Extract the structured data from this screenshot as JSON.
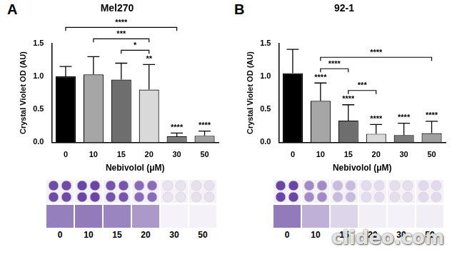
{
  "chart_data": [
    {
      "type": "bar",
      "panel": "A",
      "title": "Mel270",
      "x_label": "Nebivolol (μM)",
      "y_label": "Crystal Violet OD (AU)",
      "categories": [
        "0",
        "10",
        "15",
        "20",
        "30",
        "50"
      ],
      "values": [
        1.0,
        1.03,
        0.95,
        0.8,
        0.09,
        0.1
      ],
      "errors": [
        0.15,
        0.27,
        0.25,
        0.38,
        0.05,
        0.07
      ],
      "colors": [
        "#000000",
        "#a6a6a6",
        "#6e6e6e",
        "#d9d9d9",
        "#7a7a7a",
        "#a0a0a0"
      ],
      "ylim": [
        0,
        1.5
      ],
      "yticks": [
        {
          "value": 0,
          "label": "0.0"
        },
        {
          "value": 0.5,
          "label": "0.5"
        },
        {
          "value": 1,
          "label": "1.0"
        },
        {
          "value": 1.5,
          "label": "1.5"
        }
      ],
      "grid": false,
      "significance": {
        "bars": [
          null,
          null,
          null,
          "**",
          "****",
          "****"
        ],
        "brackets": [
          {
            "from": "0",
            "to": "30",
            "label": "****"
          },
          {
            "from": "10",
            "to": "20",
            "label": "***"
          },
          {
            "from": "15",
            "to": "20",
            "label": "*"
          }
        ]
      }
    },
    {
      "type": "bar",
      "panel": "B",
      "title": "92-1",
      "x_label": "Nebivolol (μM)",
      "y_label": "Crystal Violet OD (AU)",
      "categories": [
        "0",
        "10",
        "15",
        "20",
        "30",
        "50"
      ],
      "values": [
        1.05,
        0.63,
        0.33,
        0.13,
        0.11,
        0.14
      ],
      "errors": [
        0.36,
        0.27,
        0.24,
        0.14,
        0.18,
        0.18
      ],
      "colors": [
        "#000000",
        "#a6a6a6",
        "#6e6e6e",
        "#d9d9d9",
        "#7a7a7a",
        "#a0a0a0"
      ],
      "ylim": [
        0,
        1.5
      ],
      "yticks": [
        {
          "value": 0,
          "label": "0.0"
        },
        {
          "value": 0.5,
          "label": "0.5"
        },
        {
          "value": 1,
          "label": "1.0"
        },
        {
          "value": 1.5,
          "label": "1.5"
        }
      ],
      "grid": false,
      "significance": {
        "bars": [
          null,
          "****",
          "****",
          "****",
          "****",
          "****"
        ],
        "brackets": [
          {
            "from": "10",
            "to": "50",
            "label": "****"
          },
          {
            "from": "10",
            "to": "15",
            "label": "****"
          },
          {
            "from": "15",
            "to": "20",
            "label": "***"
          }
        ]
      }
    }
  ],
  "watermark": "clideo.com"
}
